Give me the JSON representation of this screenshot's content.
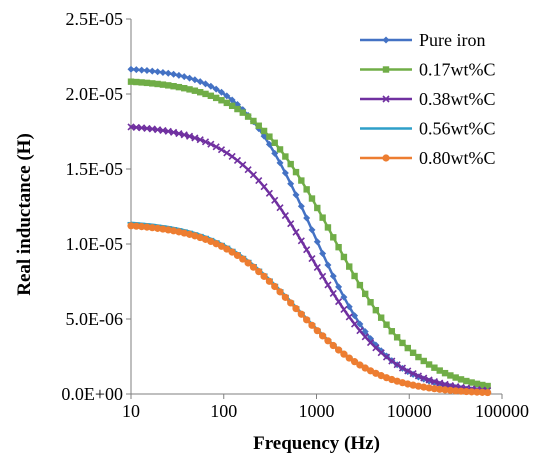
{
  "chart_data": {
    "type": "line",
    "title": "",
    "xlabel": "Frequency (Hz)",
    "ylabel": "Real inductance (H)",
    "x_scale": "log",
    "xlim": [
      10,
      100000
    ],
    "ylim": [
      0,
      2.5e-05
    ],
    "grid": false,
    "legend_position": "top-right",
    "x_ticks": [
      {
        "value": 10,
        "label": "10"
      },
      {
        "value": 100,
        "label": "100"
      },
      {
        "value": 1000,
        "label": "1000"
      },
      {
        "value": 10000,
        "label": "10000"
      },
      {
        "value": 100000,
        "label": "100000"
      }
    ],
    "y_ticks": [
      {
        "value": 0,
        "label": "0.0E+00"
      },
      {
        "value": 5e-06,
        "label": "5.0E-06"
      },
      {
        "value": 1e-05,
        "label": "1.0E-05"
      },
      {
        "value": 1.5e-05,
        "label": "1.5E-05"
      },
      {
        "value": 2e-05,
        "label": "2.0E-05"
      },
      {
        "value": 2.5e-05,
        "label": "2.5E-05"
      }
    ],
    "x_range": [
      10,
      70000
    ],
    "series": [
      {
        "name": "Pure iron",
        "color": "#4472C4",
        "marker": "diamond",
        "y0": 2.18e-05,
        "fc": 900,
        "n": 1.1
      },
      {
        "name": "0.17wt%C",
        "color": "#70AD47",
        "marker": "square",
        "y0": 2.1e-05,
        "fc": 1500,
        "n": 0.95
      },
      {
        "name": "0.38wt%C",
        "color": "#7030A0",
        "marker": "cross",
        "y0": 1.8e-05,
        "fc": 900,
        "n": 1.0
      },
      {
        "name": "0.56wt%C",
        "color": "#2E9FC9",
        "marker": "dash",
        "y0": 1.16e-05,
        "fc": 600,
        "n": 1.0
      },
      {
        "name": "0.80wt%C",
        "color": "#ED7D31",
        "marker": "circle",
        "y0": 1.14e-05,
        "fc": 600,
        "n": 1.0
      }
    ]
  }
}
